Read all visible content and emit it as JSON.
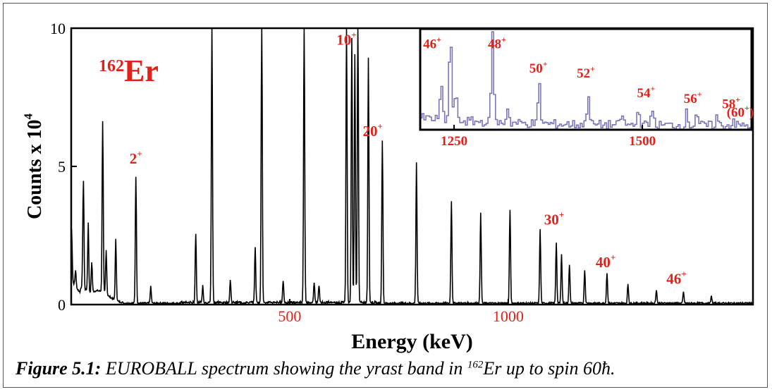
{
  "chart_data": {
    "type": "line",
    "title": "",
    "xlabel": "Energy (keV)",
    "ylabel": "Counts x 10",
    "ylabel_exponent": "4",
    "xlim": [
      0,
      1560
    ],
    "ylim": [
      0,
      10
    ],
    "x_ticks": [
      "500",
      "1000"
    ],
    "y_ticks": [
      "0",
      "5",
      "10"
    ],
    "nucleus_mass": "162",
    "nucleus_symbol": "Er",
    "peaks": [
      {
        "x": 1,
        "y": 1.8
      },
      {
        "x": 10,
        "y": 0.6
      },
      {
        "x": 26,
        "y": 0.5
      },
      {
        "x": 28,
        "y": 3.8
      },
      {
        "x": 39,
        "y": 2.4
      },
      {
        "x": 47,
        "y": 1.1
      },
      {
        "x": 72,
        "y": 6.2
      },
      {
        "x": 80,
        "y": 1.6
      },
      {
        "x": 102,
        "y": 2.2
      },
      {
        "x": 148,
        "y": 4.6
      },
      {
        "x": 182,
        "y": 0.6
      },
      {
        "x": 285,
        "y": 2.5
      },
      {
        "x": 301,
        "y": 0.6
      },
      {
        "x": 322,
        "y": 10.5
      },
      {
        "x": 364,
        "y": 0.8
      },
      {
        "x": 421,
        "y": 2.0
      },
      {
        "x": 436,
        "y": 10.5
      },
      {
        "x": 485,
        "y": 0.8
      },
      {
        "x": 533,
        "y": 10.5
      },
      {
        "x": 556,
        "y": 0.7
      },
      {
        "x": 567,
        "y": 0.6
      },
      {
        "x": 630,
        "y": 10.5
      },
      {
        "x": 642,
        "y": 9.6
      },
      {
        "x": 649,
        "y": 9.0
      },
      {
        "x": 656,
        "y": 10.5
      },
      {
        "x": 680,
        "y": 8.9
      },
      {
        "x": 712,
        "y": 5.9
      },
      {
        "x": 790,
        "y": 5.1
      },
      {
        "x": 870,
        "y": 3.7
      },
      {
        "x": 937,
        "y": 3.3
      },
      {
        "x": 1004,
        "y": 3.4
      },
      {
        "x": 1073,
        "y": 2.7
      },
      {
        "x": 1110,
        "y": 2.2
      },
      {
        "x": 1122,
        "y": 1.8
      },
      {
        "x": 1140,
        "y": 1.4
      },
      {
        "x": 1175,
        "y": 1.2
      },
      {
        "x": 1226,
        "y": 1.1
      },
      {
        "x": 1274,
        "y": 0.7
      },
      {
        "x": 1339,
        "y": 0.5
      },
      {
        "x": 1401,
        "y": 0.4
      },
      {
        "x": 1465,
        "y": 0.25
      }
    ],
    "spin_labels": [
      {
        "label": "2",
        "sup": "+",
        "x": 148,
        "y": 5.1
      },
      {
        "label": "10",
        "sup": "+",
        "x": 630,
        "y": 9.4
      },
      {
        "label": "20",
        "sup": "+",
        "x": 690,
        "y": 6.1
      },
      {
        "label": "30",
        "sup": "+",
        "x": 1105,
        "y": 2.9
      },
      {
        "label": "40",
        "sup": "+",
        "x": 1223,
        "y": 1.35
      },
      {
        "label": "46",
        "sup": "+",
        "x": 1385,
        "y": 0.75
      }
    ],
    "inset": {
      "xlim": [
        1205,
        1645
      ],
      "x_ticks": [
        "1250",
        "1500"
      ],
      "color": "#7a76b8",
      "peaks": [
        {
          "x": 1232,
          "y": 0.55
        },
        {
          "x": 1244,
          "y": 1.4
        },
        {
          "x": 1251,
          "y": 0.45
        },
        {
          "x": 1300,
          "y": 1.45
        },
        {
          "x": 1320,
          "y": 0.25
        },
        {
          "x": 1362,
          "y": 0.62
        },
        {
          "x": 1427,
          "y": 0.5
        },
        {
          "x": 1472,
          "y": 0.18
        },
        {
          "x": 1494,
          "y": 0.28
        },
        {
          "x": 1512,
          "y": 0.3
        },
        {
          "x": 1558,
          "y": 0.2
        },
        {
          "x": 1571,
          "y": 0.22
        },
        {
          "x": 1598,
          "y": 0.14
        },
        {
          "x": 1620,
          "y": 0.1
        }
      ],
      "spin_labels": [
        {
          "label": "46",
          "sup": "+",
          "x": 1221,
          "y": 1.25
        },
        {
          "label": "48",
          "sup": "+",
          "x": 1307,
          "y": 1.25
        },
        {
          "label": "50",
          "sup": "+",
          "x": 1362,
          "y": 0.88
        },
        {
          "label": "52",
          "sup": "+",
          "x": 1425,
          "y": 0.8
        },
        {
          "label": "54",
          "sup": "+",
          "x": 1505,
          "y": 0.5
        },
        {
          "label": "56",
          "sup": "+",
          "x": 1567,
          "y": 0.41
        },
        {
          "label": "58",
          "sup": "+",
          "x": 1618,
          "y": 0.33
        }
      ],
      "extra_label": "(60",
      "extra_label_sup": "+",
      "extra_label_close": ")"
    }
  },
  "colors": {
    "spectrum": "#000000",
    "label": "#e32119",
    "inset_trace": "#7a76b8"
  },
  "caption": {
    "figure_label": "Figure 5.1:",
    "text_prefix": " EUROBALL spectrum showing the yrast band in ",
    "mass_sup": "162",
    "text_suffix": "Er up to spin 60ħ."
  }
}
